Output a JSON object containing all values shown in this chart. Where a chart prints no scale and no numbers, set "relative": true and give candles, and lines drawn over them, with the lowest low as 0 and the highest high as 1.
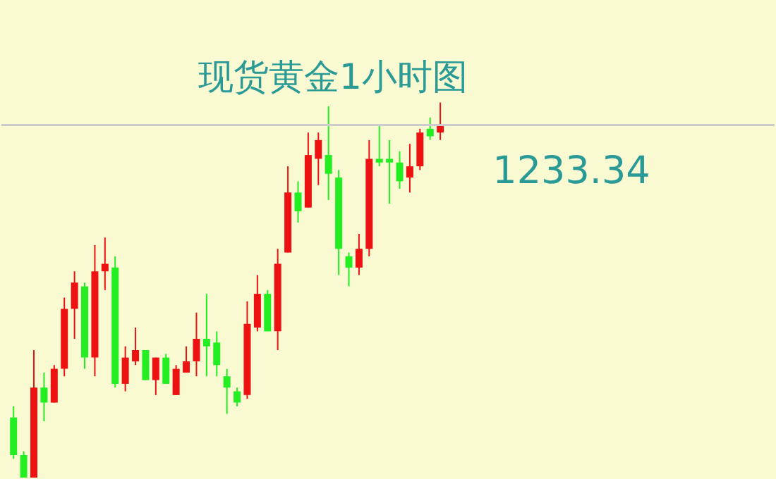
{
  "chart_data": {
    "type": "candlestick",
    "title": "现货黄金1小时图",
    "relative": true,
    "categories": [
      null,
      null,
      null,
      null,
      null,
      null,
      null,
      null,
      null,
      null,
      null,
      null,
      null,
      null,
      null,
      null,
      null,
      null,
      null,
      null,
      null,
      null,
      null,
      null,
      null,
      null,
      null,
      null,
      null,
      null,
      null,
      null,
      null,
      null,
      null,
      null,
      null,
      null,
      null,
      null,
      null,
      null,
      null
    ],
    "ohlc": [
      [
        0.16,
        0.19,
        0.05,
        0.06
      ],
      [
        0.06,
        0.07,
        0,
        0
      ],
      [
        0,
        0.34,
        0,
        0.24
      ],
      [
        0.24,
        0.28,
        0.15,
        0.2
      ],
      [
        0.2,
        0.3,
        0.2,
        0.29
      ],
      [
        0.29,
        0.48,
        0.27,
        0.45
      ],
      [
        0.45,
        0.55,
        0.37,
        0.52
      ],
      [
        0.51,
        0.52,
        0.29,
        0.32
      ],
      [
        0.32,
        0.62,
        0.27,
        0.55
      ],
      [
        0.55,
        0.64,
        0.5,
        0.57
      ],
      [
        0.56,
        0.59,
        0.24,
        0.25
      ],
      [
        0.25,
        0.35,
        0.23,
        0.32
      ],
      [
        0.31,
        0.4,
        0.3,
        0.34
      ],
      [
        0.34,
        0.34,
        0.26,
        0.26
      ],
      [
        0.26,
        0.32,
        0.22,
        0.32
      ],
      [
        0.32,
        0.33,
        0.25,
        0.25
      ],
      [
        0.22,
        0.3,
        0.22,
        0.29
      ],
      [
        0.28,
        0.35,
        0.28,
        0.31
      ],
      [
        0.31,
        0.44,
        0.27,
        0.37
      ],
      [
        0.37,
        0.49,
        0.27,
        0.35
      ],
      [
        0.36,
        0.39,
        0.27,
        0.3
      ],
      [
        0.27,
        0.29,
        0.17,
        0.24
      ],
      [
        0.23,
        0.24,
        0.19,
        0.2
      ],
      [
        0.22,
        0.47,
        0.21,
        0.41
      ],
      [
        0.4,
        0.54,
        0.39,
        0.49
      ],
      [
        0.49,
        0.5,
        0.39,
        0.39
      ],
      [
        0.39,
        0.61,
        0.34,
        0.57
      ],
      [
        0.6,
        0.83,
        0.6,
        0.76
      ],
      [
        0.76,
        0.79,
        0.68,
        0.71
      ],
      [
        0.72,
        0.92,
        0.72,
        0.86
      ],
      [
        0.85,
        0.92,
        0.78,
        0.9
      ],
      [
        0.86,
        0.99,
        0.74,
        0.81
      ],
      [
        0.8,
        0.82,
        0.54,
        0.61
      ],
      [
        0.59,
        0.6,
        0.51,
        0.56
      ],
      [
        0.56,
        0.65,
        0.54,
        0.61
      ],
      [
        0.61,
        0.9,
        0.59,
        0.85
      ],
      [
        0.85,
        0.94,
        0.83,
        0.84
      ],
      [
        0.85,
        0.9,
        0.73,
        0.84
      ],
      [
        0.84,
        0.87,
        0.77,
        0.79
      ],
      [
        0.8,
        0.89,
        0.76,
        0.83
      ],
      [
        0.83,
        0.93,
        0.82,
        0.92
      ],
      [
        0.93,
        0.96,
        0.9,
        0.91
      ],
      [
        0.92,
        1,
        0.9,
        0.94
      ]
    ],
    "colors": [
      "#22ee22",
      "#22ee22",
      "#ee1111",
      "#22ee22",
      "#ee1111",
      "#ee1111",
      "#ee1111",
      "#22ee22",
      "#ee1111",
      "#ee1111",
      "#22ee22",
      "#ee1111",
      "#ee1111",
      "#22ee22",
      "#ee1111",
      "#22ee22",
      "#ee1111",
      "#ee1111",
      "#ee1111",
      "#22ee22",
      "#22ee22",
      "#22ee22",
      "#22ee22",
      "#ee1111",
      "#ee1111",
      "#22ee22",
      "#ee1111",
      "#ee1111",
      "#22ee22",
      "#ee1111",
      "#ee1111",
      "#22ee22",
      "#22ee22",
      "#22ee22",
      "#ee1111",
      "#ee1111",
      "#22ee22",
      "#22ee22",
      "#22ee22",
      "#ee1111",
      "#ee1111",
      "#22ee22",
      "#ee1111"
    ],
    "ref_lines": [
      {
        "axis": "y",
        "value": 0.94,
        "color": "#cccccc"
      }
    ],
    "annotations": [
      "1233.34"
    ],
    "grid": false,
    "tick_labels": false
  }
}
